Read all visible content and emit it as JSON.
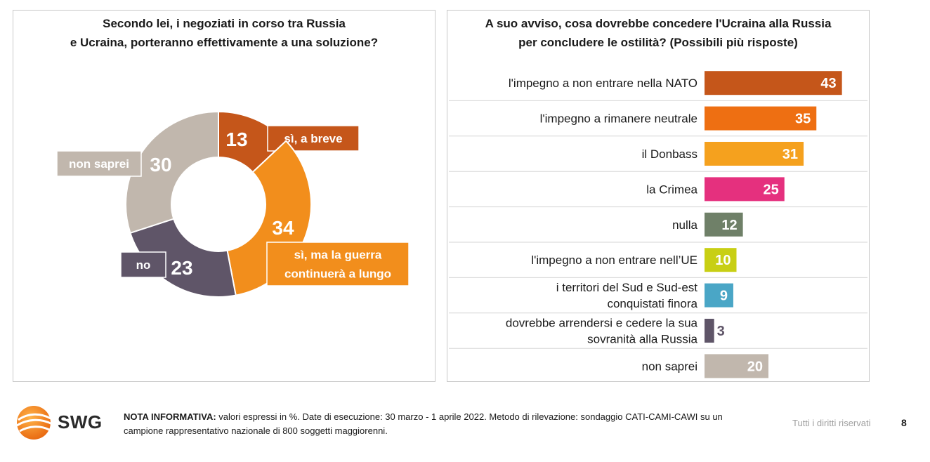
{
  "chart_data": [
    {
      "type": "pie",
      "title": "Secondo lei, i negoziati in corso tra Russia e Ucraina, porteranno effettivamente a una soluzione?",
      "title_lines": [
        "Secondo lei, i negoziati in corso tra Russia",
        "e Ucraina, porteranno effettivamente a una soluzione?"
      ],
      "donut": true,
      "slices": [
        {
          "label": "sì, a breve",
          "label_lines": [
            "sì, a breve"
          ],
          "value": 13,
          "value_text": "13",
          "color": "#c5561a"
        },
        {
          "label": "sì, ma la guerra continuerà a lungo",
          "label_lines": [
            "sì, ma la guerra",
            "continuerà a lungo"
          ],
          "value": 34,
          "value_text": "34",
          "color": "#f28e1c"
        },
        {
          "label": "no",
          "label_lines": [
            "no"
          ],
          "value": 23,
          "value_text": "23",
          "color": "#5f5568"
        },
        {
          "label": "non saprei",
          "label_lines": [
            "non saprei"
          ],
          "value": 30,
          "value_text": "30",
          "color": "#c1b7ad"
        }
      ]
    },
    {
      "type": "bar",
      "orientation": "horizontal",
      "title": "A suo avviso, cosa dovrebbe concedere l'Ucraina alla Russia per concludere le ostilità? (Possibili più risposte)",
      "title_lines": [
        "A suo avviso, cosa dovrebbe concedere l'Ucraina alla Russia",
        "per concludere le ostilità? (Possibili più risposte)"
      ],
      "xlim": [
        0,
        50
      ],
      "categories": [
        "l'impegno a non entrare nella NATO",
        "l'impegno a rimanere neutrale",
        "il Donbass",
        "la Crimea",
        "nulla",
        "l'impegno a non entrare nell’UE",
        "i territori del Sud e Sud-est conquistati finora",
        "dovrebbe arrendersi e cedere la sua sovranità alla Russia",
        "non saprei"
      ],
      "category_lines": [
        [
          "l'impegno a non entrare nella NATO"
        ],
        [
          "l'impegno a rimanere neutrale"
        ],
        [
          "il Donbass"
        ],
        [
          "la Crimea"
        ],
        [
          "nulla"
        ],
        [
          "l'impegno a non entrare nell’UE"
        ],
        [
          "i territori del Sud e Sud-est",
          "conquistati finora"
        ],
        [
          "dovrebbe arrendersi e cedere la sua",
          "sovranità alla Russia"
        ],
        [
          "non saprei"
        ]
      ],
      "values": [
        43,
        35,
        31,
        25,
        12,
        10,
        9,
        3,
        20
      ],
      "value_texts": [
        "43",
        "35",
        "31",
        "25",
        "12",
        "10",
        "9",
        "3",
        "20"
      ],
      "colors": [
        "#c5561a",
        "#ee6f12",
        "#f5a11e",
        "#e5307e",
        "#6f8068",
        "#c8cf14",
        "#4aa6c6",
        "#5f5568",
        "#c1b7ad"
      ]
    }
  ],
  "footer": {
    "logo_text": "SWG",
    "note_label": "NOTA INFORMATIVA:",
    "note_line1": " valori espressi in %. Date di esecuzione: 30 marzo - 1 aprile 2022. Metodo di rilevazione: sondaggio CATI-CAMI-CAWI su un",
    "note_line2": "campione rappresentativo nazionale di 800 soggetti maggiorenni.",
    "rights": "Tutti i diritti riservati",
    "page_number": "8"
  }
}
